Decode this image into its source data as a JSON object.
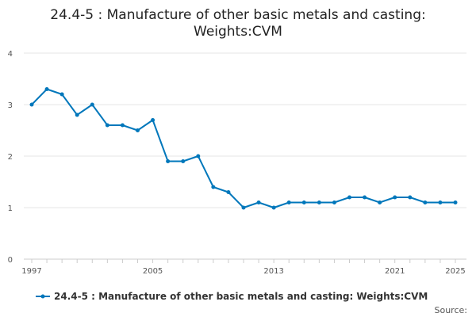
{
  "chart_data": {
    "type": "line",
    "title_lines": [
      "24.4-5 : Manufacture of other basic metals and casting:",
      "Weights:CVM"
    ],
    "xlabel": "",
    "ylabel": "",
    "x": [
      1997,
      1998,
      1999,
      2000,
      2001,
      2002,
      2003,
      2004,
      2005,
      2006,
      2007,
      2008,
      2009,
      2010,
      2011,
      2012,
      2013,
      2014,
      2015,
      2016,
      2017,
      2018,
      2019,
      2020,
      2021,
      2022,
      2023,
      2024,
      2025
    ],
    "x_ticks": [
      1997,
      2005,
      2013,
      2021,
      2025
    ],
    "xlim": [
      1997,
      2025
    ],
    "ylim": [
      0,
      4
    ],
    "y_ticks": [
      0,
      1,
      2,
      3,
      4
    ],
    "grid": true,
    "legend_position": "bottom",
    "series": [
      {
        "name": "24.4-5 : Manufacture of other basic metals and casting: Weights:CVM",
        "color": "#0077bb",
        "values": [
          3.0,
          3.3,
          3.2,
          2.8,
          3.0,
          2.6,
          2.6,
          2.5,
          2.7,
          1.9,
          1.9,
          2.0,
          1.4,
          1.3,
          1.0,
          1.1,
          1.0,
          1.1,
          1.1,
          1.1,
          1.1,
          1.2,
          1.2,
          1.1,
          1.2,
          1.2,
          1.1,
          1.1,
          1.1
        ]
      }
    ]
  },
  "source_label": "Source:"
}
